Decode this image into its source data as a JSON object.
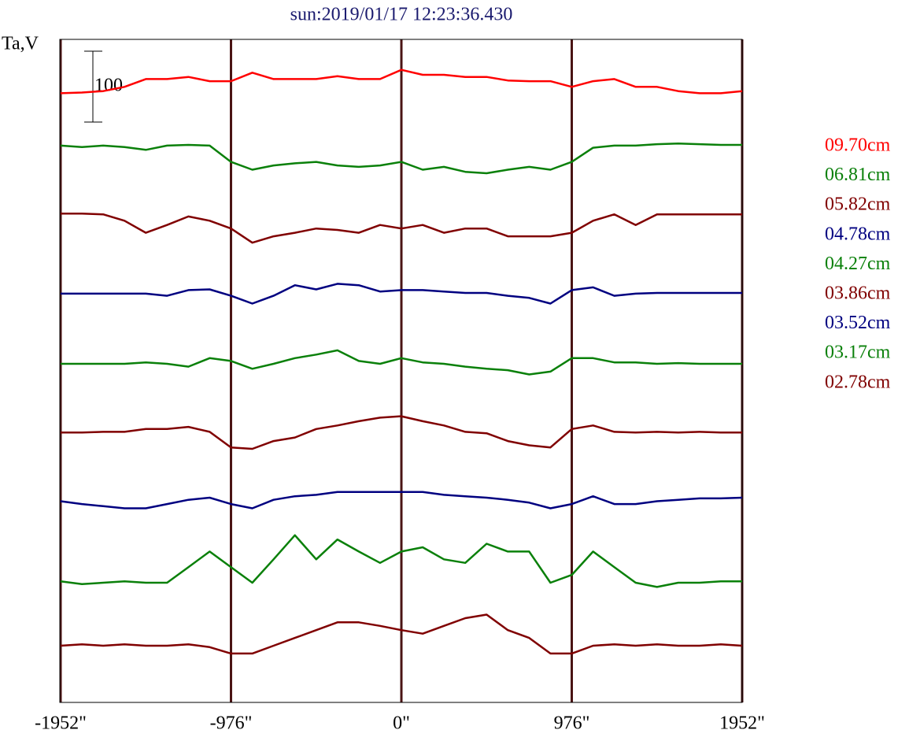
{
  "chart_data": {
    "type": "line",
    "title": "sun:2019/01/17 12:23:36.430",
    "y_label": "Ta,V",
    "scale_bar": 100,
    "x": [
      -1952,
      -1830,
      -1708,
      -1586,
      -1464,
      -1342,
      -1220,
      -1098,
      -976,
      -854,
      -732,
      -610,
      -488,
      -366,
      -244,
      -122,
      0,
      122,
      244,
      366,
      488,
      610,
      732,
      854,
      976,
      1098,
      1220,
      1342,
      1464,
      1586,
      1708,
      1830,
      1952
    ],
    "xlim": [
      -1952,
      1952
    ],
    "xticks": [
      {
        "value": -1952,
        "label": "-1952\""
      },
      {
        "value": -976,
        "label": "-976\""
      },
      {
        "value": 0,
        "label": "0\""
      },
      {
        "value": 976,
        "label": "976\""
      },
      {
        "value": 1952,
        "label": "1952\""
      }
    ],
    "ylim": [
      0,
      936
    ],
    "grid_color": "#4a1414",
    "series": [
      {
        "name": "09.70cm",
        "color": "#ff0000",
        "values": [
          860,
          861,
          863,
          869,
          880,
          880,
          883,
          877,
          877,
          889,
          880,
          880,
          880,
          884,
          880,
          880,
          893,
          886,
          886,
          883,
          883,
          878,
          877,
          877,
          869,
          877,
          880,
          869,
          869,
          863,
          860,
          860,
          863
        ]
      },
      {
        "name": "06.81cm",
        "color": "#0a800a",
        "values": [
          786,
          784,
          786,
          784,
          780,
          786,
          787,
          786,
          763,
          752,
          758,
          761,
          763,
          758,
          756,
          758,
          763,
          752,
          756,
          749,
          747,
          752,
          756,
          752,
          763,
          783,
          786,
          786,
          788,
          789,
          788,
          787,
          787
        ]
      },
      {
        "name": "05.82cm",
        "color": "#800000",
        "values": [
          690,
          690,
          689,
          680,
          663,
          674,
          686,
          680,
          669,
          649,
          658,
          663,
          669,
          667,
          663,
          674,
          669,
          674,
          663,
          669,
          669,
          658,
          658,
          658,
          663,
          680,
          689,
          674,
          689,
          689,
          689,
          689,
          689
        ]
      },
      {
        "name": "04.78cm",
        "color": "#000080",
        "values": [
          577,
          577,
          577,
          577,
          577,
          574,
          582,
          583,
          574,
          563,
          574,
          589,
          583,
          591,
          589,
          580,
          582,
          582,
          580,
          578,
          578,
          574,
          571,
          563,
          582,
          586,
          574,
          577,
          578,
          578,
          578,
          578,
          578
        ]
      },
      {
        "name": "04.27cm",
        "color": "#0a800a",
        "values": [
          478,
          478,
          478,
          478,
          480,
          478,
          474,
          486,
          482,
          471,
          478,
          486,
          491,
          497,
          482,
          478,
          486,
          480,
          478,
          474,
          471,
          469,
          463,
          467,
          486,
          486,
          480,
          480,
          478,
          479,
          478,
          478,
          478
        ]
      },
      {
        "name": "03.86cm",
        "color": "#800000",
        "values": [
          381,
          381,
          382,
          382,
          386,
          386,
          389,
          382,
          360,
          358,
          369,
          374,
          386,
          391,
          397,
          402,
          404,
          397,
          391,
          382,
          380,
          369,
          363,
          360,
          386,
          391,
          382,
          381,
          382,
          381,
          382,
          381,
          381
        ]
      },
      {
        "name": "03.52cm",
        "color": "#000080",
        "values": [
          284,
          280,
          277,
          274,
          274,
          280,
          286,
          289,
          280,
          274,
          286,
          291,
          293,
          297,
          297,
          297,
          297,
          297,
          293,
          291,
          289,
          286,
          282,
          274,
          280,
          291,
          280,
          280,
          284,
          286,
          288,
          288,
          289
        ]
      },
      {
        "name": "03.17cm",
        "color": "#0a800a",
        "values": [
          171,
          167,
          169,
          171,
          169,
          169,
          191,
          213,
          191,
          169,
          202,
          236,
          202,
          230,
          213,
          197,
          213,
          219,
          202,
          197,
          224,
          213,
          213,
          169,
          180,
          213,
          191,
          169,
          163,
          169,
          169,
          171,
          171
        ]
      },
      {
        "name": "02.78cm",
        "color": "#800000",
        "values": [
          80,
          82,
          80,
          82,
          80,
          80,
          82,
          78,
          69,
          69,
          80,
          91,
          102,
          113,
          113,
          108,
          102,
          97,
          108,
          119,
          124,
          102,
          91,
          69,
          69,
          80,
          82,
          80,
          82,
          80,
          80,
          82,
          80
        ]
      }
    ]
  }
}
